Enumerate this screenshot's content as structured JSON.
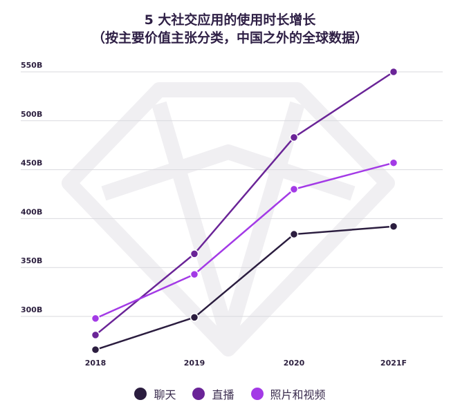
{
  "title_line1": "5 大社交应用的使用时长增长",
  "title_line2": "（按主要价值主张分类，中国之外的全球数据）",
  "chart_data": {
    "type": "line",
    "categories": [
      "2018",
      "2019",
      "2020",
      "2021F"
    ],
    "y_ticks": [
      "300B",
      "350B",
      "400B",
      "450B",
      "500B",
      "550B"
    ],
    "ylim": [
      260,
      560
    ],
    "series": [
      {
        "name": "聊天",
        "color": "#2b1d3f",
        "values": [
          266,
          299,
          384,
          392
        ]
      },
      {
        "name": "直播",
        "color": "#6a2497",
        "values": [
          281,
          364,
          483,
          550
        ]
      },
      {
        "name": "照片和视频",
        "color": "#a33ae6",
        "values": [
          298,
          343,
          430,
          457
        ]
      }
    ]
  }
}
